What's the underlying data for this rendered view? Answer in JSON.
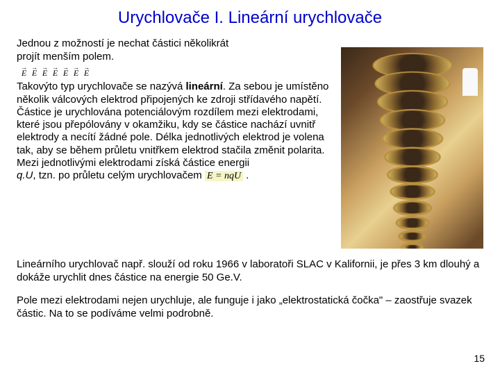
{
  "title": "Urychlovače I. Lineární urychlovače",
  "intro": "Jednou z možností je nechat částici několikrát projít menším polem.",
  "e_letters": [
    "E",
    "E",
    "E",
    "E",
    "E",
    "E",
    "E"
  ],
  "body": "Takovýto typ urychlovače se nazývá lineární. Za sebou je umístěno několik válcových elektrod připojených ke zdroji střídavého napětí. Částice je urychlována potenciálovým rozdílem mezi elektrodami, které jsou přepólovány v okamžiku, kdy se částice nachází uvnitř elektrody a necítí žádné pole. Délka jednotlivých elektrod je volena tak, aby se během průletu vnitřkem elektrod stačila změnit polarita.",
  "body2a": "Mezi jednotlivými elektrodami získá částice energii",
  "body2b": "q.U, tzn. po průletu celým urychlovačem",
  "eq": "E = nqU",
  "para2": "Lineárního urychlovač např. slouží od roku 1966 v laboratoři SLAC v Kalifornii, je přes 3 km dlouhý a dokáže urychlit dnes částice na energie 50 Ge.V.",
  "para3": "Pole mezi elektrodami nejen urychluje, ale funguje i jako „elektrostatická čočka\" – zaostřuje svazek částic. Na to se podíváme velmi podrobně.",
  "pagenum": "15",
  "colors": {
    "title": "#0000cc",
    "text": "#000000",
    "background": "#ffffff",
    "eq_bg": "#f5f5c8",
    "bar_yellow": "#d4d400",
    "bar_green": "#009900"
  }
}
